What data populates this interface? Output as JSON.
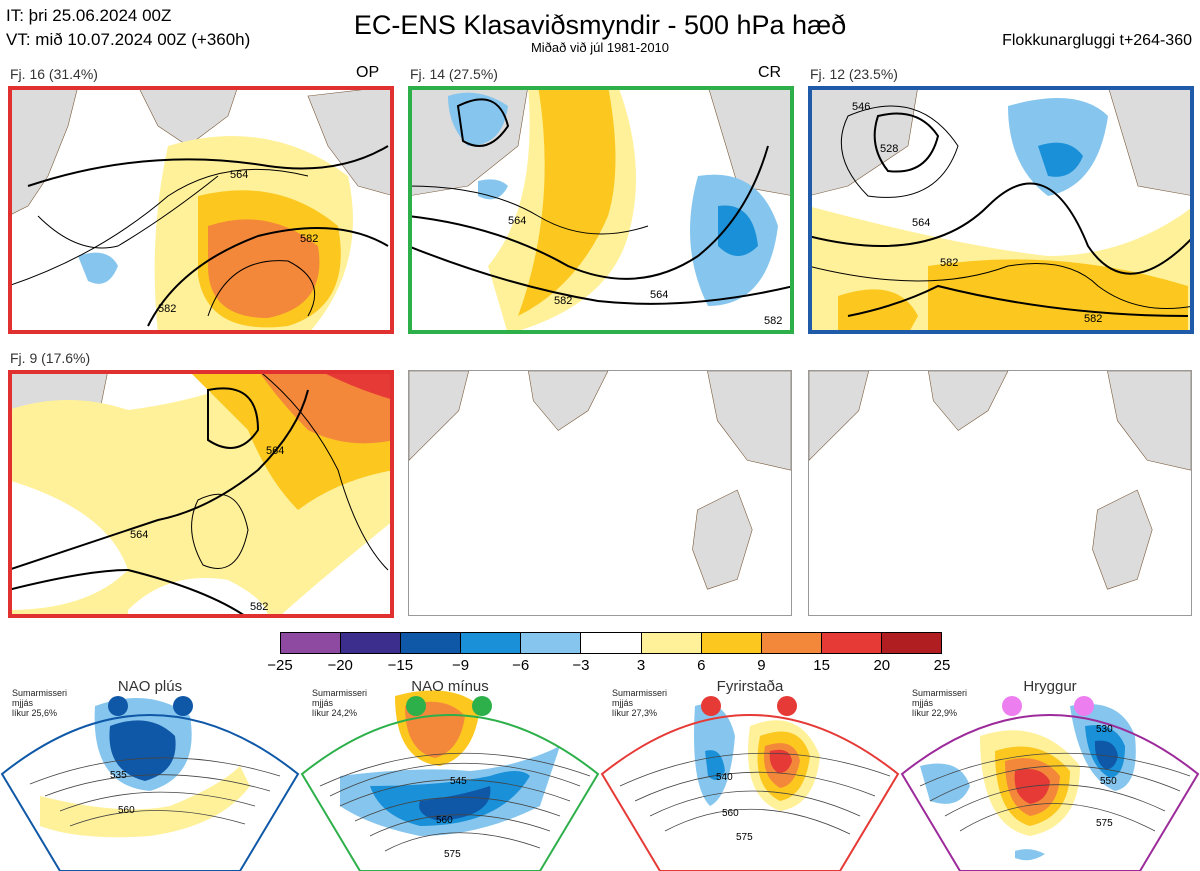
{
  "header": {
    "it_line": "IT: þri 25.06.2024 00Z",
    "vt_line": "VT: mið 10.07.2024 00Z  (+360h)",
    "title": "EC-ENS Klasaviðsmyndir - 500 hPa hæð",
    "subtitle": "Miðað við júl 1981-2010",
    "window": "Flokkunargluggi t+264-360"
  },
  "panels": [
    {
      "label": "Fj. 16 (31.4%)",
      "tag": "OP",
      "frame_color": "#e03030",
      "contours": [
        "564",
        "582",
        "582"
      ]
    },
    {
      "label": "Fj. 14 (27.5%)",
      "tag": "CR",
      "frame_color": "#2db04a",
      "contours": [
        "564",
        "564",
        "582",
        "582"
      ]
    },
    {
      "label": "Fj. 12 (23.5%)",
      "tag": "",
      "frame_color": "#1f5ba8",
      "contours": [
        "546",
        "528",
        "564",
        "582",
        "582"
      ]
    },
    {
      "label": "Fj. 9 (17.6%)",
      "tag": "",
      "frame_color": "#e03030",
      "contours": [
        "564",
        "564",
        "582"
      ]
    }
  ],
  "colorbar": {
    "ticks": [
      "−25",
      "−20",
      "−15",
      "−9",
      "−6",
      "−3",
      "3",
      "6",
      "9",
      "15",
      "20",
      "25"
    ],
    "colors": [
      "#8e4aa0",
      "#3c2e8c",
      "#0f58a8",
      "#1a90d8",
      "#86c6ee",
      "#ffffff",
      "#fff19a",
      "#fcc820",
      "#f4883a",
      "#e63a36",
      "#b01e22"
    ]
  },
  "regimes": [
    {
      "name": "NAO plús",
      "season": "Sumarmisseri",
      "location": "mjjás",
      "likelihood": "líkur 25,6%",
      "color": "#0f58a8",
      "contours": [
        "535",
        "560"
      ]
    },
    {
      "name": "NAO mínus",
      "season": "Sumarmisseri",
      "location": "mjjás",
      "likelihood": "líkur 24,2%",
      "color": "#2db04a",
      "contours": [
        "545",
        "560",
        "575"
      ]
    },
    {
      "name": "Fyrirstaða",
      "season": "Sumarmisseri",
      "location": "mjjás",
      "likelihood": "líkur 27,3%",
      "color": "#e63a36",
      "contours": [
        "540",
        "560",
        "575"
      ]
    },
    {
      "name": "Hryggur",
      "season": "Sumarmisseri",
      "location": "mjjás",
      "likelihood": "líkur 22,9%",
      "color": "#9c2a9a",
      "contours": [
        "530",
        "550",
        "575"
      ]
    }
  ]
}
